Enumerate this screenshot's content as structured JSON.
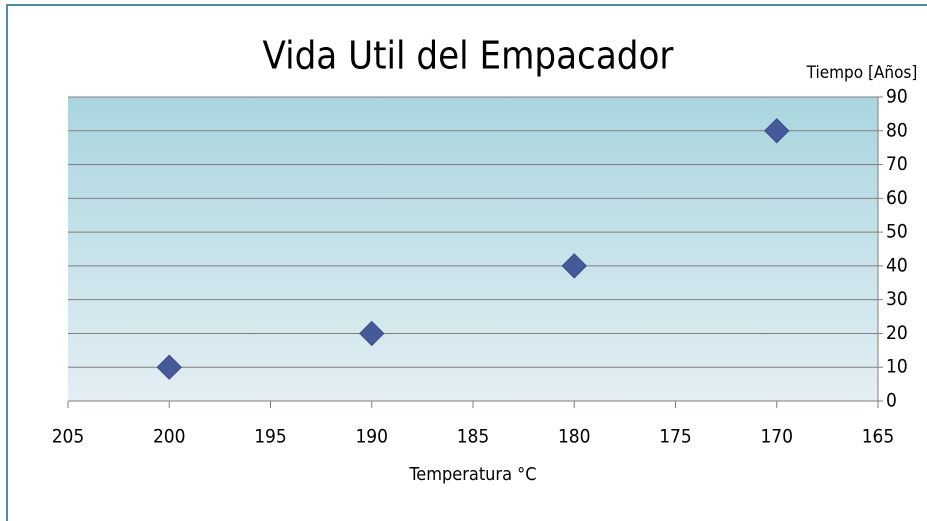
{
  "chart_data": {
    "type": "scatter",
    "title": "Vida Util del Empacador",
    "x_label": "Temperatura °C",
    "y_label": "Tiempo [Años]",
    "x": [
      200,
      190,
      180,
      170
    ],
    "values": [
      10,
      20,
      40,
      80
    ],
    "color": "#465a99",
    "xlim": [
      205,
      165
    ],
    "xticks": [
      205,
      200,
      195,
      190,
      185,
      180,
      175,
      170,
      165
    ],
    "ylim": [
      0,
      90
    ],
    "yticks": [
      0,
      10,
      20,
      30,
      40,
      50,
      60,
      70,
      80,
      90
    ],
    "grid": true,
    "y_axis_position": "right"
  }
}
